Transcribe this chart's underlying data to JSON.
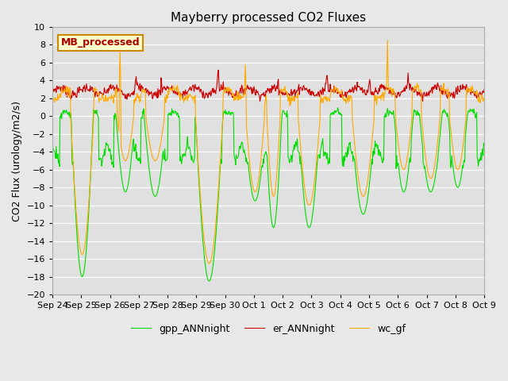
{
  "title": "Mayberry processed CO2 Fluxes",
  "ylabel": "CO2 Flux (urology/m2/s)",
  "ylim": [
    -20,
    10
  ],
  "yticks": [
    -20,
    -18,
    -16,
    -14,
    -12,
    -10,
    -8,
    -6,
    -4,
    -2,
    0,
    2,
    4,
    6,
    8,
    10
  ],
  "background_color": "#e8e8e8",
  "plot_bg_color": "#e0e0e0",
  "gpp_color": "#00dd00",
  "er_color": "#cc0000",
  "wc_color": "#ffaa00",
  "legend_label_gpp": "gpp_ANNnight",
  "legend_label_er": "er_ANNnight",
  "legend_label_wc": "wc_gf",
  "inset_label": "MB_processed",
  "inset_bg": "#ffffcc",
  "inset_border": "#cc8800",
  "inset_text_color": "#aa0000",
  "n_points": 800,
  "end_day": 16,
  "x_tick_labels": [
    "Sep 24",
    "Sep 25",
    "Sep 26",
    "Sep 27",
    "Sep 28",
    "Sep 29",
    "Sep 30",
    "Oct 1",
    "Oct 2",
    "Oct 3",
    "Oct 4",
    "Oct 5",
    "Oct 6",
    "Oct 7",
    "Oct 8",
    "Oct 9"
  ],
  "title_fontsize": 11,
  "axis_fontsize": 9,
  "tick_fontsize": 8,
  "legend_fontsize": 9
}
